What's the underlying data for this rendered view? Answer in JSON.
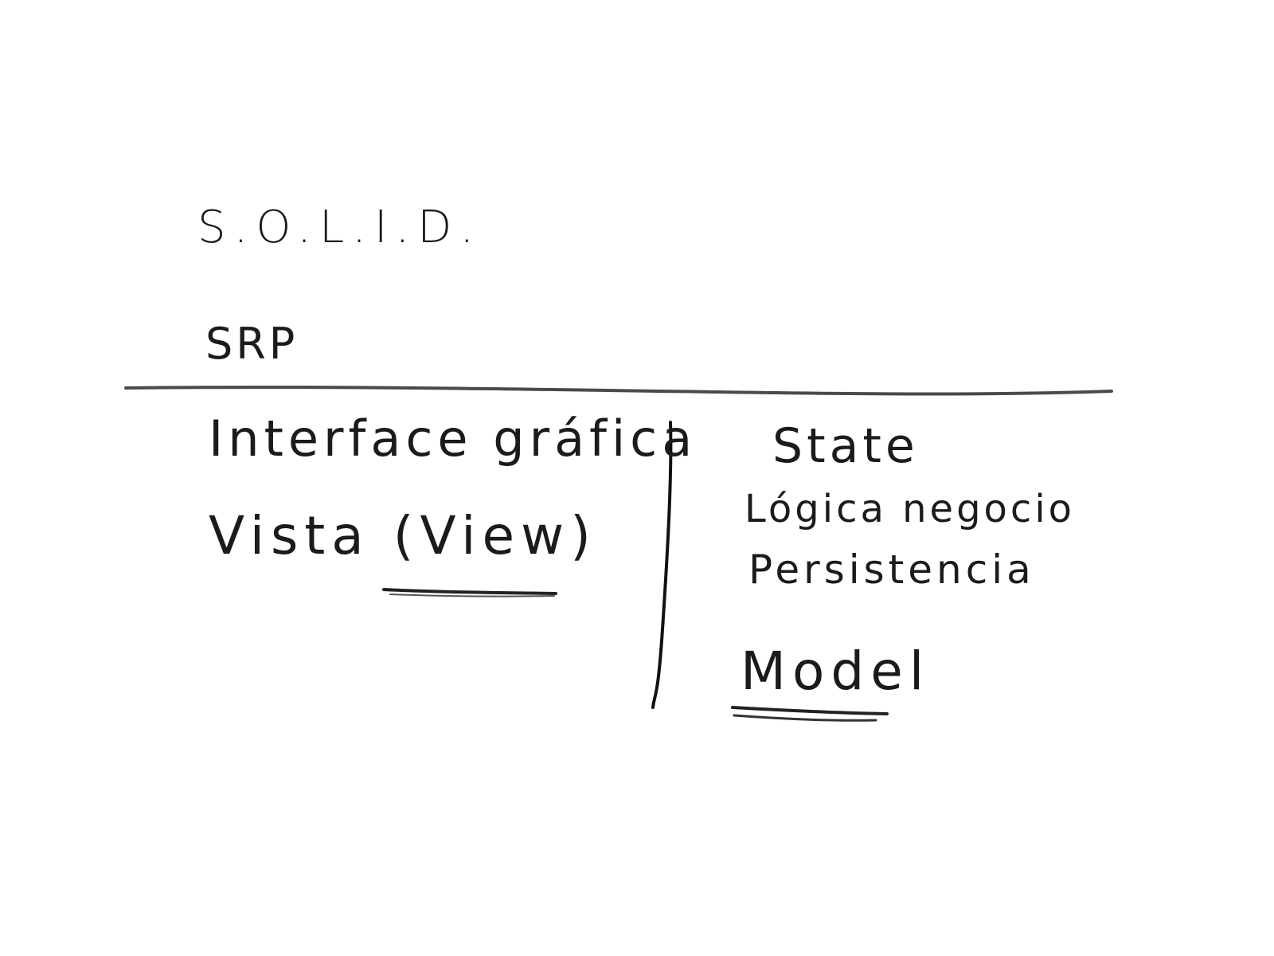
{
  "header": {
    "acronym": "S.O.L.I.D.",
    "principle": "SRP"
  },
  "left_column": {
    "line1": "Interface gráfica",
    "line2": "Vista (View)"
  },
  "right_column": {
    "line1": "State",
    "line2": "Lógica negocio",
    "line3": "Persistencia",
    "line4": "Model"
  },
  "colors": {
    "ink": "#1b1b1b",
    "paper": "#ffffff"
  }
}
